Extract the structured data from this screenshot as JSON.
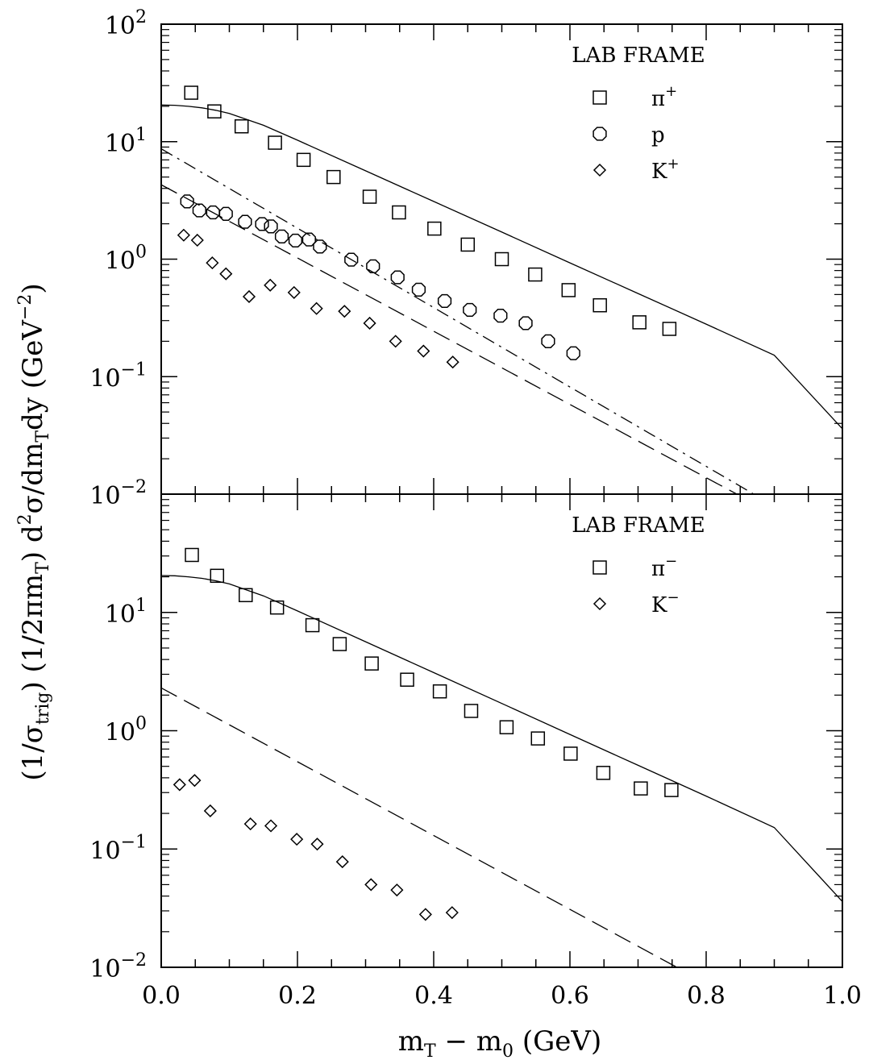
{
  "figure": {
    "ylabel_parts": {
      "p1": "(1/σ",
      "p1_sub": "trig",
      "p2": ") (1/2πm",
      "p2_sub": "T",
      "p3": ") d",
      "p3_sup": "2",
      "p4": "σ/dm",
      "p4_sub": "T",
      "p5": "dy (GeV",
      "p5_sup": "−2",
      "p6": ")"
    },
    "xlabel_parts": {
      "p1": "m",
      "p1_sub": "T",
      "p2": " − m",
      "p2_sub": "0",
      "p3": " (GeV)"
    }
  },
  "chart_data": [
    {
      "type": "scatter",
      "panel": "top",
      "title": "",
      "legend_title": "LAB FRAME",
      "legend_placement": "top-right",
      "xlabel": "m_T − m_0 (GeV)",
      "ylabel": "(1/σ_trig) (1/2πm_T) d²σ/dm_T dy (GeV⁻²)",
      "xlim": [
        0.0,
        1.0
      ],
      "ylim": [
        0.01,
        100
      ],
      "yscale": "log",
      "x_ticks": [
        0.0,
        0.2,
        0.4,
        0.6,
        0.8,
        1.0
      ],
      "y_tick_labels": [
        {
          "base": "10",
          "exp": "2"
        },
        {
          "base": "10",
          "exp": "1"
        },
        {
          "base": "10",
          "exp": "0"
        },
        {
          "base": "10",
          "exp": "−1"
        },
        {
          "base": "10",
          "exp": "−2"
        }
      ],
      "series": [
        {
          "name": "π",
          "name_sup": "+",
          "marker": "square",
          "x": [
            0.044,
            0.078,
            0.118,
            0.167,
            0.209,
            0.253,
            0.306,
            0.349,
            0.401,
            0.45,
            0.5,
            0.549,
            0.598,
            0.644,
            0.702,
            0.746
          ],
          "y": [
            26.1,
            18.1,
            13.5,
            9.8,
            7.0,
            5.0,
            3.4,
            2.5,
            1.82,
            1.33,
            1.0,
            0.74,
            0.545,
            0.405,
            0.29,
            0.255
          ]
        },
        {
          "name": "p",
          "name_sup": "",
          "marker": "octagon",
          "x": [
            0.038,
            0.056,
            0.076,
            0.095,
            0.123,
            0.148,
            0.161,
            0.177,
            0.197,
            0.217,
            0.233,
            0.279,
            0.311,
            0.347,
            0.378,
            0.416,
            0.453,
            0.498,
            0.535,
            0.568,
            0.605
          ],
          "y": [
            3.1,
            2.6,
            2.5,
            2.43,
            2.08,
            1.99,
            1.9,
            1.56,
            1.44,
            1.47,
            1.28,
            0.99,
            0.87,
            0.7,
            0.55,
            0.44,
            0.37,
            0.33,
            0.285,
            0.2,
            0.158
          ]
        },
        {
          "name": "K",
          "name_sup": "+",
          "marker": "diamond",
          "x": [
            0.033,
            0.053,
            0.075,
            0.095,
            0.129,
            0.16,
            0.195,
            0.228,
            0.269,
            0.306,
            0.344,
            0.385,
            0.428
          ],
          "y": [
            1.6,
            1.45,
            0.93,
            0.75,
            0.48,
            0.6,
            0.52,
            0.38,
            0.36,
            0.285,
            0.2,
            0.165,
            0.133
          ]
        }
      ],
      "curves": [
        {
          "style": "solid",
          "x": [
            0.0,
            0.02,
            0.04,
            0.06,
            0.08,
            0.1,
            0.15,
            0.2,
            0.3,
            0.4,
            0.5,
            0.6,
            0.7,
            0.8,
            0.9,
            1.0
          ],
          "y": [
            20.5,
            20.4,
            20.0,
            19.4,
            18.5,
            17.4,
            13.8,
            10.3,
            5.65,
            3.1,
            1.7,
            0.93,
            0.51,
            0.28,
            0.152,
            0.036
          ]
        },
        {
          "style": "dash-dot",
          "x": [
            0.0,
            0.87
          ],
          "y": [
            8.7,
            0.01
          ]
        },
        {
          "style": "dashed",
          "x": [
            0.0,
            0.845
          ],
          "y": [
            4.3,
            0.01
          ]
        }
      ]
    },
    {
      "type": "scatter",
      "panel": "bottom",
      "title": "",
      "legend_title": "LAB FRAME",
      "legend_placement": "top-right",
      "xlabel": "m_T − m_0 (GeV)",
      "ylabel": "(1/σ_trig) (1/2πm_T) d²σ/dm_T dy (GeV⁻²)",
      "xlim": [
        0.0,
        1.0
      ],
      "ylim": [
        0.01,
        100
      ],
      "yscale": "log",
      "x_ticks": [
        0.0,
        0.2,
        0.4,
        0.6,
        0.8,
        1.0
      ],
      "x_tick_labels": [
        "0.0",
        "0.2",
        "0.4",
        "0.6",
        "0.8",
        "1.0"
      ],
      "y_tick_labels": [
        {
          "base": "10",
          "exp": "1"
        },
        {
          "base": "10",
          "exp": "0"
        },
        {
          "base": "10",
          "exp": "−1"
        },
        {
          "base": "10",
          "exp": "−2"
        }
      ],
      "series": [
        {
          "name": "π",
          "name_sup": "−",
          "marker": "square",
          "x": [
            0.045,
            0.082,
            0.124,
            0.17,
            0.222,
            0.262,
            0.309,
            0.361,
            0.409,
            0.455,
            0.507,
            0.553,
            0.601,
            0.649,
            0.704,
            0.749
          ],
          "y": [
            30.6,
            20.4,
            14.0,
            11.0,
            7.8,
            5.4,
            3.7,
            2.7,
            2.15,
            1.47,
            1.07,
            0.86,
            0.64,
            0.44,
            0.325,
            0.315
          ]
        },
        {
          "name": "K",
          "name_sup": "−",
          "marker": "diamond",
          "x": [
            0.027,
            0.049,
            0.072,
            0.131,
            0.161,
            0.199,
            0.229,
            0.266,
            0.308,
            0.346,
            0.388,
            0.427
          ],
          "y": [
            0.35,
            0.38,
            0.21,
            0.163,
            0.157,
            0.121,
            0.11,
            0.078,
            0.05,
            0.045,
            0.028,
            0.029
          ]
        }
      ],
      "curves": [
        {
          "style": "solid",
          "x": [
            0.0,
            0.02,
            0.04,
            0.06,
            0.08,
            0.1,
            0.15,
            0.2,
            0.3,
            0.4,
            0.5,
            0.6,
            0.7,
            0.8,
            0.9,
            1.0
          ],
          "y": [
            20.5,
            20.4,
            20.0,
            19.4,
            18.5,
            17.4,
            13.8,
            10.3,
            5.65,
            3.1,
            1.7,
            0.93,
            0.51,
            0.28,
            0.152,
            0.036
          ]
        },
        {
          "style": "dashed",
          "x": [
            0.0,
            0.757
          ],
          "y": [
            2.3,
            0.01
          ]
        }
      ]
    }
  ]
}
